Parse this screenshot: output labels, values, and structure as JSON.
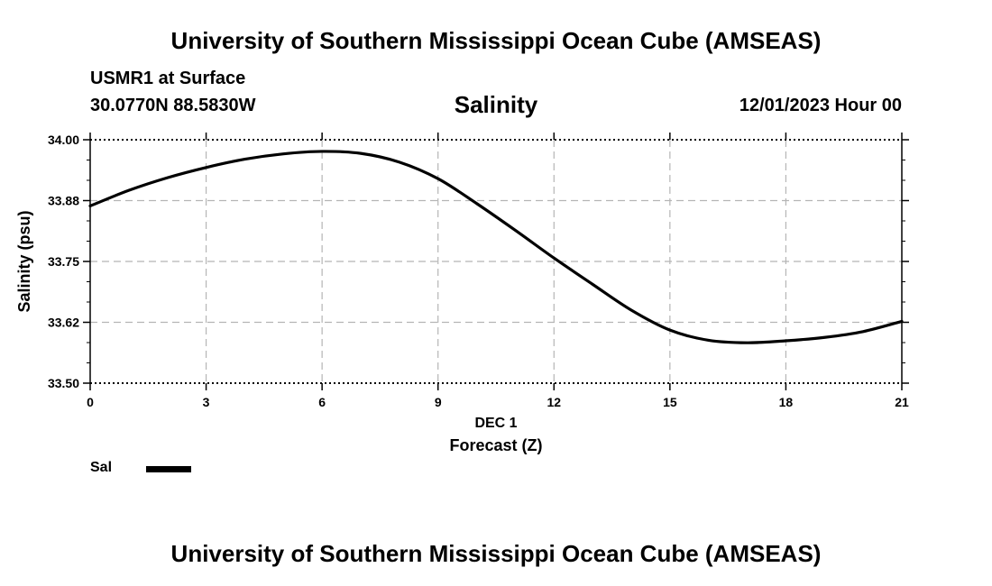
{
  "header": {
    "title": "University of Southern Mississippi Ocean Cube (AMSEAS)",
    "station": "USMR1 at Surface",
    "coords": "30.0770N  88.5830W",
    "datetime": "12/01/2023 Hour 00"
  },
  "footer": {
    "title": "University of Southern Mississippi Ocean Cube (AMSEAS)"
  },
  "chart_data": {
    "type": "line",
    "title": "Salinity",
    "xlabel": "Forecast (Z)",
    "xsublabel": "DEC 1",
    "ylabel": "Salinity (psu)",
    "xlim": [
      0,
      21
    ],
    "ylim": [
      33.5,
      34.0
    ],
    "xticks": [
      0,
      3,
      6,
      9,
      12,
      15,
      18,
      21
    ],
    "xtick_labels": [
      "0",
      "3",
      "6",
      "9",
      "12",
      "15",
      "18",
      "21"
    ],
    "yticks": [
      33.5,
      33.625,
      33.75,
      33.875,
      34.0
    ],
    "ytick_labels": [
      "33.50",
      "33.62",
      "33.75",
      "33.88",
      "34.00"
    ],
    "grid": true,
    "series": [
      {
        "name": "Sal",
        "x": [
          0,
          1,
          2,
          3,
          4,
          5,
          6,
          7,
          8,
          9,
          10,
          11,
          12,
          13,
          14,
          15,
          16,
          17,
          18,
          19,
          20,
          21
        ],
        "values": [
          33.864,
          33.896,
          33.922,
          33.943,
          33.96,
          33.971,
          33.976,
          33.972,
          33.954,
          33.92,
          33.869,
          33.814,
          33.757,
          33.703,
          33.65,
          33.609,
          33.588,
          33.583,
          33.587,
          33.594,
          33.606,
          33.627
        ]
      }
    ],
    "legend": [
      {
        "label": "Sal",
        "color": "#000000"
      }
    ]
  }
}
